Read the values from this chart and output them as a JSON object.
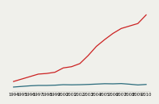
{
  "years": [
    1994,
    1995,
    1996,
    1997,
    1998,
    1999,
    2000,
    2001,
    2002,
    2003,
    2004,
    2005,
    2006,
    2007,
    2008,
    2009,
    2010
  ],
  "red_line": [
    1.0,
    1.2,
    1.4,
    1.6,
    1.65,
    1.75,
    2.1,
    2.2,
    2.45,
    3.1,
    3.85,
    4.4,
    4.9,
    5.3,
    5.5,
    5.7,
    6.4
  ],
  "teal_line": [
    0.55,
    0.6,
    0.65,
    0.68,
    0.68,
    0.7,
    0.74,
    0.73,
    0.74,
    0.76,
    0.79,
    0.82,
    0.81,
    0.83,
    0.78,
    0.72,
    0.76
  ],
  "red_color": "#cc2222",
  "teal_color": "#2a6b7c",
  "bg_color": "#f0f0eb",
  "grid_color": "#d0d0c8",
  "tick_fontsize": 3.8,
  "line_width": 0.9,
  "ylim": [
    0.2,
    7.0
  ],
  "xlim": [
    1993.8,
    2010.5
  ]
}
